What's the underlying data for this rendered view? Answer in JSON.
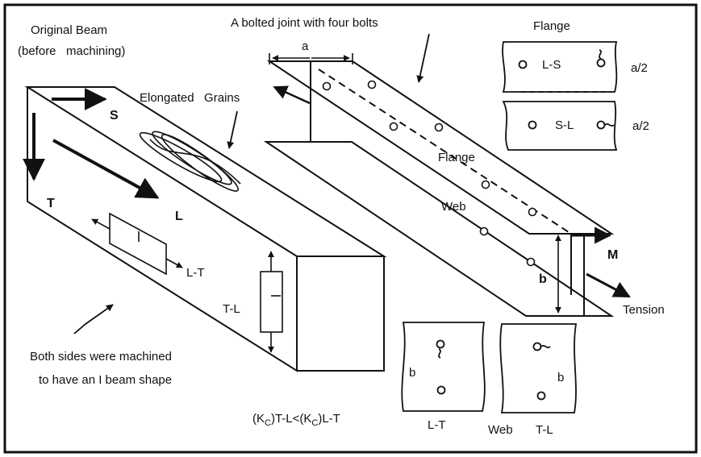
{
  "labels": {
    "original_beam_1": "Original Beam",
    "original_beam_2": "(before   machining)",
    "bolted_joint": "A bolted joint with four bolts",
    "flange_title": "Flange",
    "elongated_grains": "Elongated   Grains",
    "dim_a": "a",
    "dir_S": "S",
    "dir_T": "T",
    "dir_L": "L",
    "flange_on_beam": "Flange",
    "web_on_beam": "Web",
    "spec_LT": "L-T",
    "spec_TL": "T-L",
    "dim_b": "b",
    "moment_M": "M",
    "tension": "Tension",
    "flange_LS": "L-S",
    "flange_SL": "S-L",
    "half_a_1": "a/2",
    "half_a_2": "a/2",
    "note_1": "Both sides were machined",
    "note_2": "to have an I beam shape",
    "web_b_left": "b",
    "web_b_right": "b",
    "web_LT": "L-T",
    "web_word": "Web",
    "web_TL": "T-L"
  },
  "inequality": {
    "part1": "(K",
    "sub1": "C",
    "part2": ")T-L<(K",
    "sub2": "C",
    "part3": ")L-T"
  },
  "colors": {
    "ink": "#111111",
    "background": "#ffffff"
  }
}
